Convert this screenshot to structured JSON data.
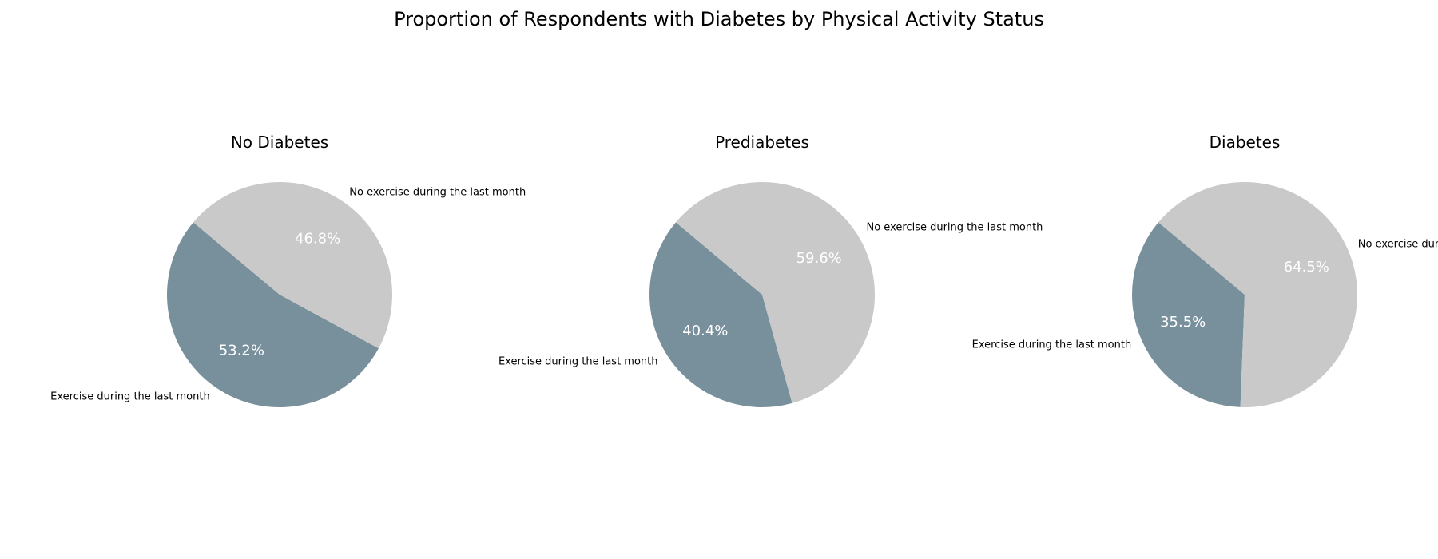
{
  "figure": {
    "title": "Proportion of Respondents with Diabetes by Physical Activity Status"
  },
  "chart_data": [
    {
      "type": "pie",
      "title": "No Diabetes",
      "labels": [
        "Exercise during the last month",
        "No exercise during the last month"
      ],
      "values": [
        53.2,
        46.8
      ],
      "value_labels": [
        "53.2%",
        "46.8%"
      ],
      "colors": [
        "#78909c",
        "#c9c9c9"
      ]
    },
    {
      "type": "pie",
      "title": "Prediabetes",
      "labels": [
        "Exercise during the last month",
        "No exercise during the last month"
      ],
      "values": [
        40.4,
        59.6
      ],
      "value_labels": [
        "40.4%",
        "59.6%"
      ],
      "colors": [
        "#78909c",
        "#c9c9c9"
      ]
    },
    {
      "type": "pie",
      "title": "Diabetes",
      "labels": [
        "Exercise during the last month",
        "No exercise during the last month"
      ],
      "values": [
        35.5,
        64.5
      ],
      "value_labels": [
        "35.5%",
        "64.5%"
      ],
      "colors": [
        "#78909c",
        "#c9c9c9"
      ]
    }
  ]
}
